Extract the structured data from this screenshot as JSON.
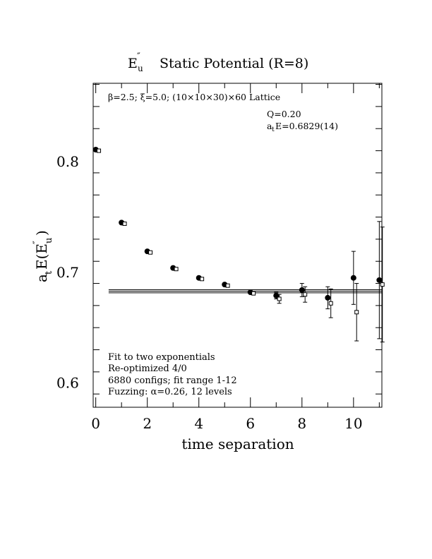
{
  "chart_data": {
    "type": "scatter",
    "title": "E″u  Static Potential (R=8)",
    "title_main": "E",
    "title_prime": "″",
    "title_sub": "u",
    "title_rest": "Static Potential (R=8)",
    "subtitle": "β=2.5; ξ=5.0; (10×10×30)×60 Lattice",
    "fit_info": {
      "q": "Q=0.20",
      "energy_prefix": "a",
      "energy_sub": "t",
      "energy_rest": "E=0.6829(14)"
    },
    "notes": [
      "Fit to two exponentials",
      "Re-optimized 4/0",
      "6880 configs; fit range 1-12",
      "Fuzzing: α=0.26, 12 levels"
    ],
    "xlabel": "time separation",
    "ylabel": "a_t E(E″_u)",
    "xlim": [
      -0.1,
      11.1
    ],
    "ylim": [
      0.578,
      0.871
    ],
    "x_ticks": [
      0,
      2,
      4,
      6,
      8,
      10
    ],
    "x_tick_labels": [
      "0",
      "2",
      "4",
      "6",
      "8",
      "10"
    ],
    "y_ticks": [
      0.6,
      0.7,
      0.8
    ],
    "y_tick_labels": [
      "0.6",
      "0.7",
      "0.8"
    ],
    "fit": {
      "value": 0.6829,
      "error": 0.0014,
      "x_range": [
        0.5,
        11.1
      ]
    },
    "series": [
      {
        "marker": "filled-circle",
        "x": [
          0,
          1,
          2,
          3,
          4,
          5,
          6,
          7,
          8,
          9,
          10,
          11
        ],
        "y": [
          0.811,
          0.745,
          0.719,
          0.704,
          0.695,
          0.689,
          0.682,
          0.679,
          0.684,
          0.677,
          0.695,
          0.693
        ],
        "yerr": [
          0,
          0,
          0,
          0,
          0,
          0,
          0,
          0.003,
          0.006,
          0.01,
          0.024,
          0.053
        ]
      },
      {
        "marker": "open-square",
        "x": [
          0.12,
          1.12,
          2.12,
          3.12,
          4.12,
          5.12,
          6.12,
          7.12,
          8.12,
          9.12,
          10.12,
          11.12
        ],
        "y": [
          0.81,
          0.744,
          0.718,
          0.703,
          0.694,
          0.688,
          0.681,
          0.676,
          0.68,
          0.672,
          0.664,
          0.689
        ],
        "yerr": [
          0,
          0,
          0,
          0,
          0,
          0,
          0,
          0.004,
          0.007,
          0.013,
          0.026,
          0.052
        ]
      }
    ]
  }
}
